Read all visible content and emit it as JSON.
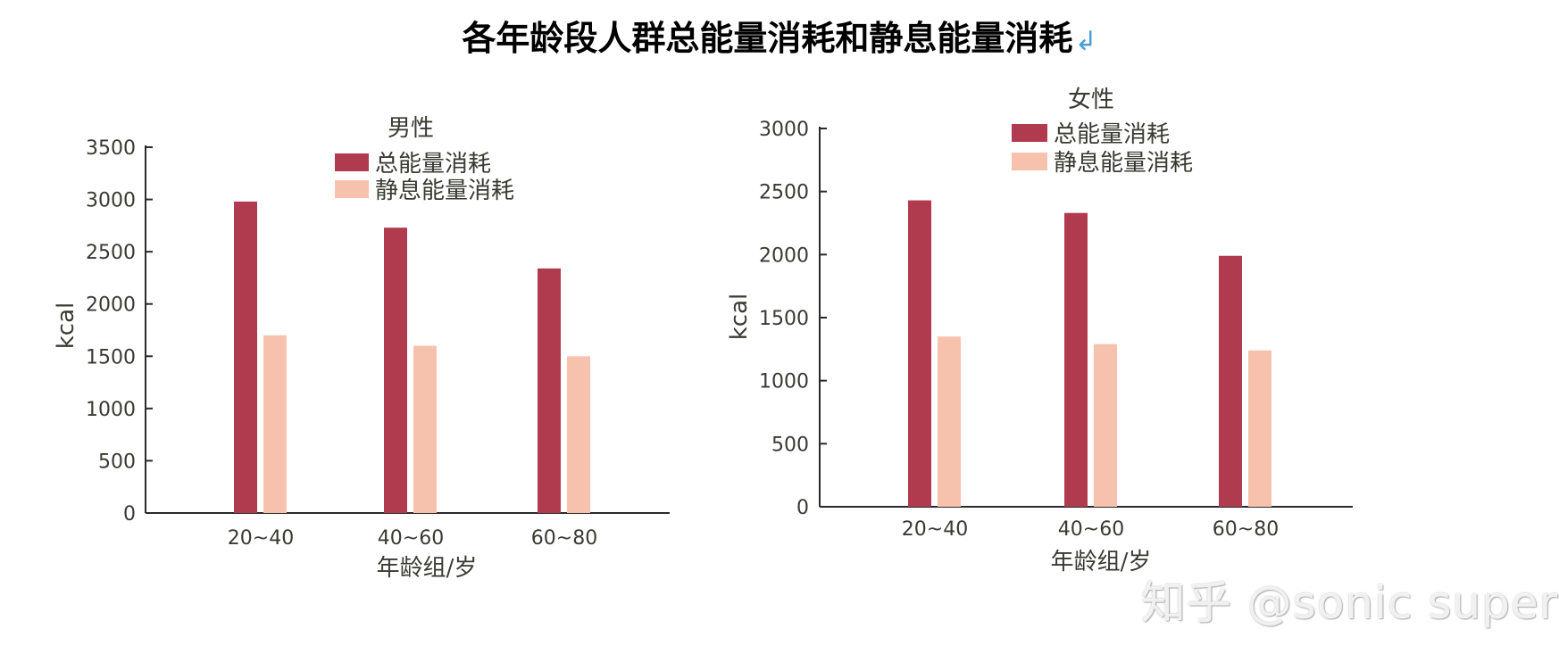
{
  "page": {
    "title": "各年龄段人群总能量消耗和静息能量消耗",
    "return_mark": "↲",
    "watermark": "知乎 @sonic super"
  },
  "colors": {
    "total": "#b03a4e",
    "resting": "#f7c2ad",
    "axis": "#2a2a2a",
    "text": "#3a3a32"
  },
  "chart_data": [
    {
      "type": "bar",
      "title": "男性",
      "categories": [
        "20~40",
        "40~60",
        "60~80"
      ],
      "series": [
        {
          "name": "总能量消耗",
          "values": [
            2980,
            2730,
            2340
          ]
        },
        {
          "name": "静息能量消耗",
          "values": [
            1700,
            1600,
            1500
          ]
        }
      ],
      "yticks": [
        "0",
        "500",
        "1000",
        "1500",
        "2000",
        "2500",
        "3000",
        "3500"
      ],
      "ylim": [
        0,
        3500
      ],
      "ylabel": "kcal",
      "xlabel": "年龄组/岁",
      "legend": "top-center",
      "grid": false
    },
    {
      "type": "bar",
      "title": "女性",
      "categories": [
        "20~40",
        "40~60",
        "60~80"
      ],
      "series": [
        {
          "name": "总能量消耗",
          "values": [
            2430,
            2330,
            1990
          ]
        },
        {
          "name": "静息能量消耗",
          "values": [
            1350,
            1290,
            1240
          ]
        }
      ],
      "yticks": [
        "0",
        "500",
        "1000",
        "1500",
        "2000",
        "2500",
        "3000"
      ],
      "ylim": [
        0,
        3000
      ],
      "ylabel": "kcal",
      "xlabel": "年龄组/岁",
      "legend": "top-center",
      "grid": false
    }
  ]
}
